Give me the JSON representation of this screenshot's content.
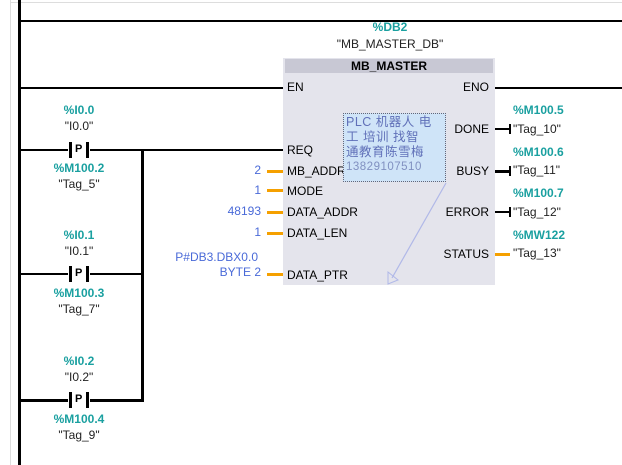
{
  "block": {
    "instance_addr": "%DB2",
    "instance_name": "\"MB_MASTER_DB\"",
    "title": "MB_MASTER",
    "inputs": [
      {
        "pin": "EN"
      },
      {
        "pin": "REQ"
      },
      {
        "pin": "MB_ADDR",
        "value": "2"
      },
      {
        "pin": "MODE",
        "value": "1"
      },
      {
        "pin": "DATA_ADDR",
        "value": "48193"
      },
      {
        "pin": "DATA_LEN",
        "value": "1"
      },
      {
        "pin": "DATA_PTR",
        "value_line1": "P#DB3.DBX0.0",
        "value_line2": "BYTE 2"
      }
    ],
    "outputs": [
      {
        "pin": "ENO"
      },
      {
        "pin": "DONE",
        "addr": "%M100.5",
        "tag": "\"Tag_10\""
      },
      {
        "pin": "BUSY",
        "addr": "%M100.6",
        "tag": "\"Tag_11\""
      },
      {
        "pin": "ERROR",
        "addr": "%M100.7",
        "tag": "\"Tag_12\""
      },
      {
        "pin": "STATUS",
        "addr": "%MW122",
        "tag": "\"Tag_13\""
      }
    ]
  },
  "contacts": [
    {
      "addr": "%I0.0",
      "tag": "\"I0.0\"",
      "type": "P",
      "edge_addr": "%M100.2",
      "edge_tag": "\"Tag_5\""
    },
    {
      "addr": "%I0.1",
      "tag": "\"I0.1\"",
      "type": "P",
      "edge_addr": "%M100.3",
      "edge_tag": "\"Tag_7\""
    },
    {
      "addr": "%I0.2",
      "tag": "\"I0.2\"",
      "type": "P",
      "edge_addr": "%M100.4",
      "edge_tag": "\"Tag_9\""
    }
  ],
  "comment": {
    "line1": "PLC 机器人 电",
    "line2": "工 培训 找智",
    "line3": "通教育陈雪梅",
    "line4": "13829107510"
  },
  "colors": {
    "power_flow": "#000000",
    "data_wire": "#f5a000",
    "address": "#1aa0a0",
    "constant": "#4a6ad8",
    "block_bg": "#e4e4ec"
  }
}
